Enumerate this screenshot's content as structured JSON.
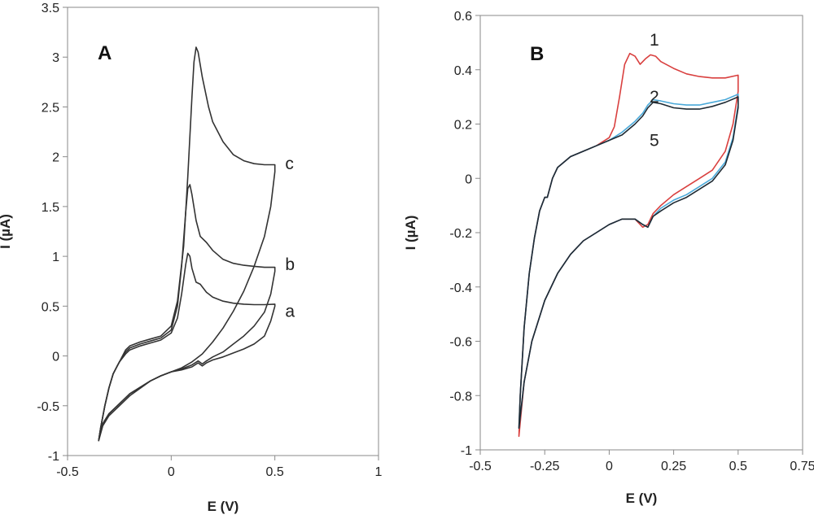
{
  "chart_data": [
    {
      "type": "line",
      "panel_label": "A",
      "title": "",
      "xlabel": "E (V)",
      "ylabel": "I (µA)",
      "xlim": [
        -0.5,
        1
      ],
      "ylim": [
        -1,
        3.5
      ],
      "xticks": [
        -0.5,
        0,
        0.5,
        1
      ],
      "xtick_labels": [
        "-0.5",
        "0",
        "0.5",
        "1"
      ],
      "yticks": [
        -1,
        -0.5,
        0,
        0.5,
        1,
        1.5,
        2,
        2.5,
        3,
        3.5
      ],
      "ytick_labels": [
        "-1",
        "-0.5",
        "0",
        "0.5",
        "1",
        "1.5",
        "2",
        "2.5",
        "3",
        "3.5"
      ],
      "grid": false,
      "legend": "none",
      "series": [
        {
          "name": "a",
          "color": "#333333",
          "label_at": [
            0.55,
            0.45
          ],
          "x": [
            -0.22,
            -0.2,
            -0.15,
            -0.1,
            -0.05,
            0.0,
            0.03,
            0.05,
            0.07,
            0.08,
            0.09,
            0.1,
            0.12,
            0.14,
            0.17,
            0.2,
            0.25,
            0.3,
            0.35,
            0.4,
            0.45,
            0.5,
            0.5,
            0.48,
            0.45,
            0.4,
            0.35,
            0.3,
            0.25,
            0.2,
            0.17,
            0.15,
            0.13,
            0.1,
            0.05,
            0.0,
            -0.05,
            -0.1,
            -0.2,
            -0.25,
            -0.3,
            -0.33,
            -0.35,
            -0.34,
            -0.32,
            -0.3,
            -0.28,
            -0.26,
            -0.25,
            -0.22
          ],
          "y": [
            0.02,
            0.06,
            0.1,
            0.13,
            0.16,
            0.23,
            0.38,
            0.62,
            0.92,
            1.03,
            1.0,
            0.88,
            0.74,
            0.72,
            0.64,
            0.59,
            0.55,
            0.53,
            0.52,
            0.515,
            0.515,
            0.52,
            0.5,
            0.35,
            0.2,
            0.12,
            0.07,
            0.03,
            -0.01,
            -0.04,
            -0.07,
            -0.1,
            -0.07,
            -0.11,
            -0.14,
            -0.16,
            -0.2,
            -0.25,
            -0.38,
            -0.48,
            -0.58,
            -0.68,
            -0.85,
            -0.72,
            -0.5,
            -0.32,
            -0.18,
            -0.1,
            -0.06,
            0.02
          ]
        },
        {
          "name": "b",
          "color": "#333333",
          "label_at": [
            0.55,
            0.92
          ],
          "x": [
            -0.22,
            -0.2,
            -0.15,
            -0.1,
            -0.05,
            0.0,
            0.03,
            0.05,
            0.07,
            0.08,
            0.09,
            0.1,
            0.12,
            0.14,
            0.17,
            0.2,
            0.25,
            0.3,
            0.35,
            0.4,
            0.45,
            0.5,
            0.5,
            0.48,
            0.45,
            0.4,
            0.35,
            0.3,
            0.25,
            0.2,
            0.17,
            0.15,
            0.13,
            0.1,
            0.05,
            0.0,
            -0.05,
            -0.1,
            -0.2,
            -0.25,
            -0.3,
            -0.33,
            -0.35,
            -0.34,
            -0.32,
            -0.3,
            -0.28,
            -0.26,
            -0.25,
            -0.22
          ],
          "y": [
            0.04,
            0.08,
            0.12,
            0.15,
            0.18,
            0.26,
            0.5,
            0.9,
            1.45,
            1.68,
            1.72,
            1.62,
            1.36,
            1.2,
            1.14,
            1.06,
            0.97,
            0.93,
            0.91,
            0.9,
            0.89,
            0.89,
            0.85,
            0.62,
            0.44,
            0.3,
            0.2,
            0.12,
            0.04,
            -0.01,
            -0.05,
            -0.08,
            -0.05,
            -0.09,
            -0.13,
            -0.16,
            -0.2,
            -0.25,
            -0.38,
            -0.48,
            -0.58,
            -0.68,
            -0.85,
            -0.72,
            -0.5,
            -0.32,
            -0.18,
            -0.1,
            -0.06,
            0.04
          ]
        },
        {
          "name": "c",
          "color": "#333333",
          "label_at": [
            0.55,
            1.93
          ],
          "x": [
            -0.22,
            -0.2,
            -0.15,
            -0.1,
            -0.05,
            0.0,
            0.03,
            0.06,
            0.08,
            0.1,
            0.11,
            0.12,
            0.13,
            0.15,
            0.18,
            0.2,
            0.25,
            0.3,
            0.35,
            0.4,
            0.45,
            0.5,
            0.5,
            0.48,
            0.45,
            0.4,
            0.35,
            0.3,
            0.25,
            0.2,
            0.15,
            0.1,
            0.05,
            0.0,
            -0.05,
            -0.1,
            -0.2,
            -0.25,
            -0.3,
            -0.33,
            -0.35,
            -0.34,
            -0.32,
            -0.3,
            -0.28,
            -0.26,
            -0.25,
            -0.22
          ],
          "y": [
            0.06,
            0.1,
            0.14,
            0.17,
            0.2,
            0.3,
            0.55,
            1.1,
            1.8,
            2.6,
            2.95,
            3.1,
            3.05,
            2.8,
            2.5,
            2.35,
            2.15,
            2.02,
            1.96,
            1.93,
            1.92,
            1.92,
            1.85,
            1.5,
            1.2,
            0.9,
            0.65,
            0.45,
            0.28,
            0.14,
            0.02,
            -0.06,
            -0.12,
            -0.16,
            -0.2,
            -0.25,
            -0.4,
            -0.5,
            -0.6,
            -0.7,
            -0.85,
            -0.72,
            -0.5,
            -0.32,
            -0.18,
            -0.1,
            -0.06,
            0.06
          ]
        }
      ]
    },
    {
      "type": "line",
      "panel_label": "B",
      "title": "",
      "xlabel": "E (V)",
      "ylabel": "I (µA)",
      "xlim": [
        -0.5,
        0.75
      ],
      "ylim": [
        -1,
        0.6
      ],
      "xticks": [
        -0.5,
        -0.25,
        0,
        0.25,
        0.5,
        0.75
      ],
      "xtick_labels": [
        "-0.5",
        "-0.25",
        "0",
        "0.25",
        "0.5",
        "0.75"
      ],
      "yticks": [
        -1,
        -0.8,
        -0.6,
        -0.4,
        -0.2,
        0,
        0.2,
        0.4,
        0.6
      ],
      "ytick_labels": [
        "-1",
        "-0.8",
        "-0.6",
        "-0.4",
        "-0.2",
        "0",
        "0.2",
        "0.4",
        "0.6"
      ],
      "grid": false,
      "legend": "none",
      "series": [
        {
          "name": "1",
          "color": "#d9403f",
          "label_at": [
            0.175,
            0.51
          ],
          "x": [
            -0.24,
            -0.22,
            -0.2,
            -0.15,
            -0.1,
            -0.05,
            0.0,
            0.02,
            0.04,
            0.06,
            0.08,
            0.1,
            0.12,
            0.14,
            0.16,
            0.18,
            0.2,
            0.25,
            0.3,
            0.35,
            0.4,
            0.45,
            0.5,
            0.5,
            0.48,
            0.45,
            0.4,
            0.35,
            0.3,
            0.25,
            0.2,
            0.17,
            0.15,
            0.13,
            0.1,
            0.05,
            0.0,
            -0.05,
            -0.1,
            -0.15,
            -0.2,
            -0.25,
            -0.3,
            -0.33,
            -0.35,
            -0.345,
            -0.33,
            -0.31,
            -0.29,
            -0.27,
            -0.25,
            -0.24
          ],
          "y": [
            -0.07,
            0.0,
            0.04,
            0.08,
            0.1,
            0.12,
            0.15,
            0.19,
            0.3,
            0.42,
            0.46,
            0.45,
            0.42,
            0.44,
            0.455,
            0.45,
            0.43,
            0.405,
            0.385,
            0.375,
            0.37,
            0.37,
            0.38,
            0.32,
            0.2,
            0.1,
            0.03,
            0.0,
            -0.03,
            -0.06,
            -0.1,
            -0.13,
            -0.17,
            -0.18,
            -0.15,
            -0.15,
            -0.17,
            -0.2,
            -0.23,
            -0.28,
            -0.35,
            -0.45,
            -0.6,
            -0.75,
            -0.95,
            -0.8,
            -0.55,
            -0.35,
            -0.22,
            -0.12,
            -0.07,
            -0.07
          ]
        },
        {
          "name": "2",
          "color": "#4aa9d9",
          "label_at": [
            0.175,
            0.3
          ],
          "x": [
            -0.24,
            -0.22,
            -0.2,
            -0.15,
            -0.1,
            -0.05,
            0.0,
            0.05,
            0.1,
            0.13,
            0.15,
            0.17,
            0.2,
            0.25,
            0.3,
            0.35,
            0.4,
            0.45,
            0.5,
            0.5,
            0.48,
            0.45,
            0.4,
            0.35,
            0.3,
            0.25,
            0.2,
            0.17,
            0.15,
            0.13,
            0.1,
            0.05,
            0.0,
            -0.05,
            -0.1,
            -0.15,
            -0.2,
            -0.25,
            -0.3,
            -0.33,
            -0.35,
            -0.345,
            -0.33,
            -0.31,
            -0.29,
            -0.27,
            -0.25,
            -0.24
          ],
          "y": [
            -0.07,
            0.0,
            0.04,
            0.08,
            0.1,
            0.12,
            0.14,
            0.17,
            0.21,
            0.24,
            0.27,
            0.29,
            0.285,
            0.275,
            0.27,
            0.27,
            0.28,
            0.29,
            0.31,
            0.27,
            0.15,
            0.06,
            0.0,
            -0.03,
            -0.06,
            -0.08,
            -0.11,
            -0.14,
            -0.18,
            -0.17,
            -0.15,
            -0.15,
            -0.17,
            -0.2,
            -0.23,
            -0.28,
            -0.35,
            -0.45,
            -0.6,
            -0.75,
            -0.92,
            -0.8,
            -0.55,
            -0.35,
            -0.22,
            -0.12,
            -0.07,
            -0.07
          ]
        },
        {
          "name": "5",
          "color": "#1f2a33",
          "label_at": [
            0.175,
            0.14
          ],
          "x": [
            -0.24,
            -0.22,
            -0.2,
            -0.15,
            -0.1,
            -0.05,
            0.0,
            0.05,
            0.1,
            0.13,
            0.15,
            0.17,
            0.2,
            0.25,
            0.3,
            0.35,
            0.4,
            0.45,
            0.5,
            0.5,
            0.48,
            0.45,
            0.4,
            0.35,
            0.3,
            0.25,
            0.2,
            0.17,
            0.15,
            0.13,
            0.1,
            0.05,
            0.0,
            -0.05,
            -0.1,
            -0.15,
            -0.2,
            -0.25,
            -0.3,
            -0.33,
            -0.35,
            -0.345,
            -0.33,
            -0.31,
            -0.29,
            -0.27,
            -0.25,
            -0.24
          ],
          "y": [
            -0.07,
            0.0,
            0.04,
            0.08,
            0.1,
            0.12,
            0.14,
            0.16,
            0.2,
            0.23,
            0.26,
            0.28,
            0.275,
            0.26,
            0.255,
            0.255,
            0.265,
            0.28,
            0.3,
            0.26,
            0.14,
            0.05,
            -0.01,
            -0.04,
            -0.07,
            -0.09,
            -0.12,
            -0.14,
            -0.18,
            -0.17,
            -0.15,
            -0.15,
            -0.17,
            -0.2,
            -0.23,
            -0.28,
            -0.35,
            -0.45,
            -0.6,
            -0.75,
            -0.92,
            -0.8,
            -0.55,
            -0.35,
            -0.22,
            -0.12,
            -0.07,
            -0.07
          ]
        }
      ]
    }
  ]
}
